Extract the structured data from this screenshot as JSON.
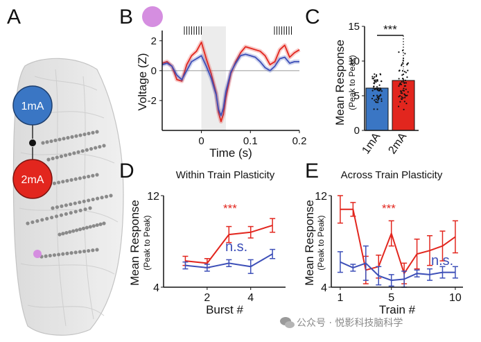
{
  "panels": {
    "A": {
      "letter": "A",
      "label_1ma": "1mA",
      "label_2ma": "2mA",
      "colors": {
        "blue": "#3a76c4",
        "red": "#e2261e",
        "pink": "#d58ee0"
      }
    },
    "B": {
      "letter": "B",
      "chart_data": {
        "type": "line",
        "title": "",
        "xlabel": "Time (s)",
        "ylabel": "Voltage (Z)",
        "xlim": [
          -0.08,
          0.2
        ],
        "ylim": [
          -4,
          2.5
        ],
        "xticks": [
          "0",
          "0.1",
          "0.2"
        ],
        "xtick_values": [
          0,
          0.1,
          0.2
        ],
        "yticks": [
          "2",
          "0",
          "-2"
        ],
        "ytick_values": [
          2,
          0,
          -2
        ],
        "stim_window": [
          0,
          0.05
        ],
        "series": [
          {
            "name": "2mA",
            "color": "#e2261e",
            "x": [
              -0.08,
              -0.07,
              -0.06,
              -0.05,
              -0.04,
              -0.03,
              -0.02,
              -0.01,
              0,
              0.01,
              0.02,
              0.03,
              0.035,
              0.04,
              0.045,
              0.05,
              0.06,
              0.07,
              0.08,
              0.09,
              0.1,
              0.11,
              0.12,
              0.13,
              0.14,
              0.15,
              0.16,
              0.17,
              0.18,
              0.19,
              0.2
            ],
            "y": [
              0.5,
              0.6,
              0.3,
              -0.6,
              -0.7,
              0.4,
              1.0,
              1.3,
              1.9,
              0.8,
              -0.2,
              -1.5,
              -2.8,
              -3.4,
              -2.9,
              -1.8,
              -0.2,
              0.6,
              1.2,
              1.6,
              1.5,
              1.4,
              1.3,
              1.0,
              0.4,
              0.6,
              1.4,
              1.7,
              0.9,
              1.2,
              1.4
            ]
          },
          {
            "name": "1mA",
            "color": "#3d4fb8",
            "x": [
              -0.08,
              -0.07,
              -0.06,
              -0.05,
              -0.04,
              -0.03,
              -0.02,
              -0.01,
              0,
              0.01,
              0.02,
              0.03,
              0.035,
              0.04,
              0.045,
              0.05,
              0.06,
              0.07,
              0.08,
              0.09,
              0.1,
              0.11,
              0.12,
              0.13,
              0.14,
              0.15,
              0.16,
              0.17,
              0.18,
              0.19,
              0.2
            ],
            "y": [
              0.4,
              0.5,
              0.3,
              -0.3,
              -0.6,
              0.0,
              0.6,
              0.8,
              1.0,
              0.3,
              -0.5,
              -1.6,
              -2.6,
              -3.0,
              -2.5,
              -1.4,
              -0.1,
              0.5,
              1.0,
              1.1,
              1.0,
              0.9,
              0.6,
              0.2,
              0.0,
              0.3,
              0.8,
              0.9,
              0.5,
              0.6,
              0.6
            ]
          }
        ]
      },
      "stim_ticks_count": 8
    },
    "C": {
      "letter": "C",
      "chart_data": {
        "type": "bar",
        "title": "",
        "categories": [
          "1mA",
          "2mA"
        ],
        "values": [
          6.1,
          7.2
        ],
        "errors": [
          0.3,
          0.3
        ],
        "colors": [
          "#3a76c4",
          "#e2261e"
        ],
        "xlabel": "",
        "ylabel": "Mean Response",
        "ylabel_sub": "(Peak to Peak)",
        "ylim": [
          0,
          15
        ],
        "yticks": [
          "15",
          "10",
          "5",
          "0"
        ],
        "ytick_values": [
          15,
          10,
          5,
          0
        ],
        "annotation": "***"
      }
    },
    "D": {
      "letter": "D",
      "chart_data": {
        "type": "line",
        "title": "Within Train Plasticity",
        "xlabel": "Burst #",
        "ylabel": "Mean Response",
        "ylabel_sub": "(Peak to Peak)",
        "x": [
          1,
          2,
          3,
          4,
          5
        ],
        "xlim": [
          0,
          5.6
        ],
        "ylim": [
          4,
          12
        ],
        "xticks": [
          "2",
          "4"
        ],
        "xtick_values": [
          2,
          4
        ],
        "yticks": [
          "12",
          "4"
        ],
        "ytick_values": [
          12,
          4
        ],
        "series": [
          {
            "name": "2mA",
            "color": "#e2261e",
            "values": [
              6.3,
              6.1,
              8.6,
              8.8,
              9.4
            ],
            "errors": [
              0.4,
              0.4,
              0.7,
              0.5,
              0.6
            ],
            "annotation": "***"
          },
          {
            "name": "1mA",
            "color": "#3d4fb8",
            "values": [
              5.9,
              5.7,
              6.1,
              5.8,
              6.9
            ],
            "errors": [
              0.3,
              0.3,
              0.3,
              0.6,
              0.4
            ],
            "annotation": "n.s."
          }
        ]
      }
    },
    "E": {
      "letter": "E",
      "chart_data": {
        "type": "line",
        "title": "Across Train Plasticity",
        "xlabel": "Train #",
        "ylabel": "Mean Response",
        "ylabel_sub": "(Peak to Peak)",
        "x": [
          1,
          2,
          3,
          4,
          5,
          6,
          7,
          8,
          9,
          10
        ],
        "xlim": [
          0.3,
          10.6
        ],
        "ylim": [
          4,
          12
        ],
        "xticks": [
          "1",
          "5",
          "10"
        ],
        "xtick_values": [
          1,
          5,
          10
        ],
        "yticks": [
          "12",
          "4"
        ],
        "ytick_values": [
          12,
          4
        ],
        "series": [
          {
            "name": "2mA",
            "color": "#e2261e",
            "values": [
              10.8,
              10.8,
              5.5,
              5.8,
              8.7,
              5.2,
              6.9,
              7.2,
              7.6,
              8.4
            ],
            "errors": [
              1.2,
              0.6,
              1.2,
              1.0,
              1.1,
              0.9,
              1.3,
              1.3,
              1.3,
              1.4
            ],
            "annotation": "***"
          },
          {
            "name": "1mA",
            "color": "#3d4fb8",
            "values": [
              6.2,
              5.7,
              6.1,
              5.0,
              4.6,
              4.7,
              5.2,
              5.1,
              5.3,
              5.3
            ],
            "errors": [
              0.9,
              0.3,
              1.5,
              0.8,
              0.5,
              0.7,
              0.3,
              0.5,
              0.5,
              0.5
            ],
            "annotation": "n.s."
          }
        ]
      }
    }
  },
  "watermark": "公众号 · 悦影科技脑科学"
}
